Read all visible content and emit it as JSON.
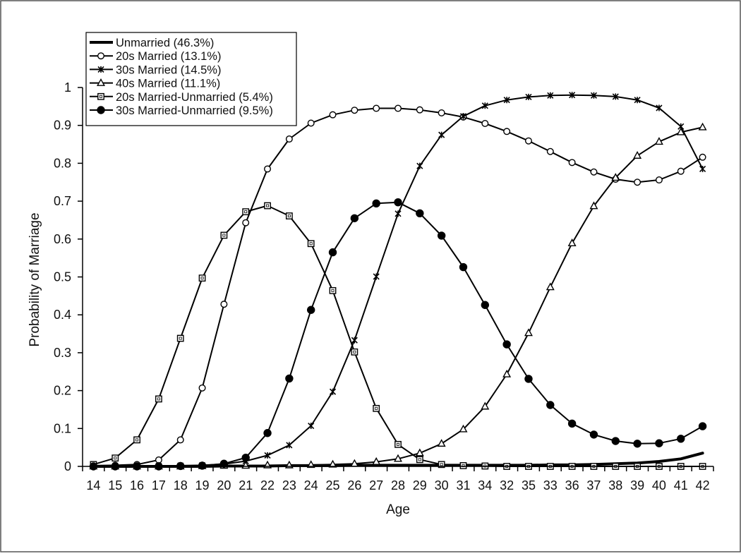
{
  "chart_data": {
    "type": "line",
    "title": "",
    "xlabel": "Age",
    "ylabel": "Probability of Marriage",
    "ylim": [
      0,
      1
    ],
    "y_ticks": [
      "0",
      "0.1",
      "0.2",
      "0.3",
      "0.4",
      "0.5",
      "0.6",
      "0.7",
      "0.8",
      "0.9",
      "1"
    ],
    "categories": [
      "14",
      "15",
      "16",
      "17",
      "18",
      "19",
      "20",
      "21",
      "22",
      "23",
      "24",
      "25",
      "26",
      "27",
      "28",
      "29",
      "30",
      "31",
      "34",
      "32",
      "35",
      "33",
      "36",
      "37",
      "38",
      "39",
      "40",
      "41",
      "42"
    ],
    "grid": false,
    "legend_position": "top-left",
    "series": [
      {
        "name": "Unmarried (46.3%)",
        "marker": "none",
        "values": [
          0,
          0,
          0,
          0,
          0,
          0,
          0.001,
          0.001,
          0.001,
          0.002,
          0.002,
          0.002,
          0.003,
          0.003,
          0.003,
          0.003,
          0.003,
          0.003,
          0.003,
          0.003,
          0.003,
          0.004,
          0.004,
          0.005,
          0.007,
          0.009,
          0.013,
          0.02,
          0.035
        ]
      },
      {
        "name": "20s Married (13.1%)",
        "marker": "circle-open",
        "values": [
          0.002,
          0.003,
          0.005,
          0.017,
          0.07,
          0.207,
          0.428,
          0.643,
          0.785,
          0.864,
          0.906,
          0.928,
          0.94,
          0.945,
          0.945,
          0.941,
          0.933,
          0.922,
          0.905,
          0.884,
          0.859,
          0.831,
          0.802,
          0.777,
          0.758,
          0.75,
          0.756,
          0.779,
          0.816
        ]
      },
      {
        "name": "30s Married (14.5%)",
        "marker": "cross",
        "values": [
          0,
          0,
          0,
          0.001,
          0.002,
          0.003,
          0.006,
          0.014,
          0.029,
          0.056,
          0.107,
          0.197,
          0.333,
          0.501,
          0.667,
          0.793,
          0.875,
          0.924,
          0.952,
          0.967,
          0.975,
          0.979,
          0.98,
          0.979,
          0.976,
          0.967,
          0.946,
          0.897,
          0.785
        ]
      },
      {
        "name": "40s Married (11.1%)",
        "marker": "triangle-open",
        "values": [
          0,
          0,
          0,
          0,
          0,
          0.001,
          0.002,
          0.002,
          0.003,
          0.003,
          0.004,
          0.005,
          0.007,
          0.012,
          0.02,
          0.035,
          0.06,
          0.098,
          0.158,
          0.243,
          0.352,
          0.473,
          0.589,
          0.687,
          0.762,
          0.82,
          0.857,
          0.882,
          0.895
        ]
      },
      {
        "name": "20s Married-Unmarried (5.4%)",
        "marker": "square-open",
        "values": [
          0.005,
          0.022,
          0.07,
          0.178,
          0.338,
          0.497,
          0.61,
          0.672,
          0.688,
          0.661,
          0.588,
          0.464,
          0.302,
          0.153,
          0.058,
          0.018,
          0.005,
          0.002,
          0.001,
          0,
          0,
          0,
          0,
          0,
          0,
          0,
          0,
          0,
          0
        ]
      },
      {
        "name": "30s Married-Unmarried (9.5%)",
        "marker": "circle-filled",
        "values": [
          0,
          0,
          0,
          0,
          0.001,
          0.002,
          0.007,
          0.023,
          0.088,
          0.232,
          0.413,
          0.565,
          0.655,
          0.694,
          0.697,
          0.668,
          0.609,
          0.526,
          0.426,
          0.322,
          0.231,
          0.162,
          0.113,
          0.084,
          0.067,
          0.06,
          0.061,
          0.073,
          0.106
        ]
      }
    ]
  }
}
